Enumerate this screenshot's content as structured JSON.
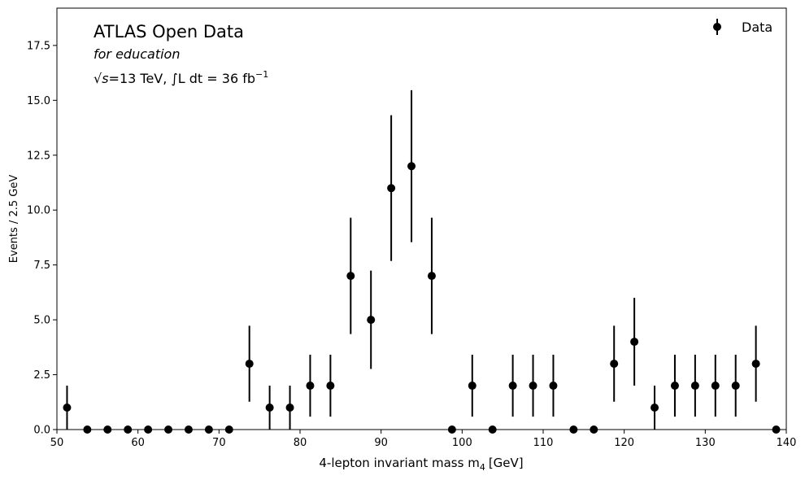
{
  "chart_data": {
    "type": "scatter",
    "style": "errorbar",
    "xlabel": "4-lepton invariant mass m",
    "xlabel_sub": "4",
    "xlabel_unit": "[GeV]",
    "ylabel": "Events / 2.5 GeV",
    "xlim": [
      50,
      140
    ],
    "ylim": [
      0,
      19.2
    ],
    "x_ticks": [
      50,
      60,
      70,
      80,
      90,
      100,
      110,
      120,
      130,
      140
    ],
    "y_ticks": [
      0.0,
      2.5,
      5.0,
      7.5,
      10.0,
      12.5,
      15.0,
      17.5
    ],
    "y_tick_labels": [
      "0.0",
      "2.5",
      "5.0",
      "7.5",
      "10.0",
      "12.5",
      "15.0",
      "17.5"
    ],
    "grid": false,
    "legend_position": "top-right",
    "annotations": {
      "title": "ATLAS Open Data",
      "subtitle": "for education",
      "sqrt_sym": "√",
      "s_var": "s",
      "energy_eq": "=13 TeV, ",
      "integral_sym": "∫",
      "lumi_text": "L dt = 36 fb",
      "lumi_exp": "−1"
    },
    "series": [
      {
        "name": "Data",
        "color": "#000000",
        "x": [
          51.25,
          53.75,
          56.25,
          58.75,
          61.25,
          63.75,
          66.25,
          68.75,
          71.25,
          73.75,
          76.25,
          78.75,
          81.25,
          83.75,
          86.25,
          88.75,
          91.25,
          93.75,
          96.25,
          98.75,
          101.25,
          103.75,
          106.25,
          108.75,
          111.25,
          113.75,
          116.25,
          118.75,
          121.25,
          123.75,
          126.25,
          128.75,
          131.25,
          133.75,
          136.25,
          138.75
        ],
        "y": [
          1,
          0,
          0,
          0,
          0,
          0,
          0,
          0,
          0,
          3,
          1,
          1,
          2,
          2,
          7,
          5,
          11,
          12,
          7,
          0,
          2,
          0,
          2,
          2,
          2,
          0,
          0,
          3,
          4,
          1,
          2,
          2,
          2,
          2,
          3,
          0
        ],
        "yerr": [
          1.0,
          0,
          0,
          0,
          0,
          0,
          0,
          0,
          0,
          1.73,
          1.0,
          1.0,
          1.41,
          1.41,
          2.65,
          2.24,
          3.32,
          3.46,
          2.65,
          0,
          1.41,
          0,
          1.41,
          1.41,
          1.41,
          0,
          0,
          1.73,
          2.0,
          1.0,
          1.41,
          1.41,
          1.41,
          1.41,
          1.73,
          0
        ]
      }
    ]
  }
}
